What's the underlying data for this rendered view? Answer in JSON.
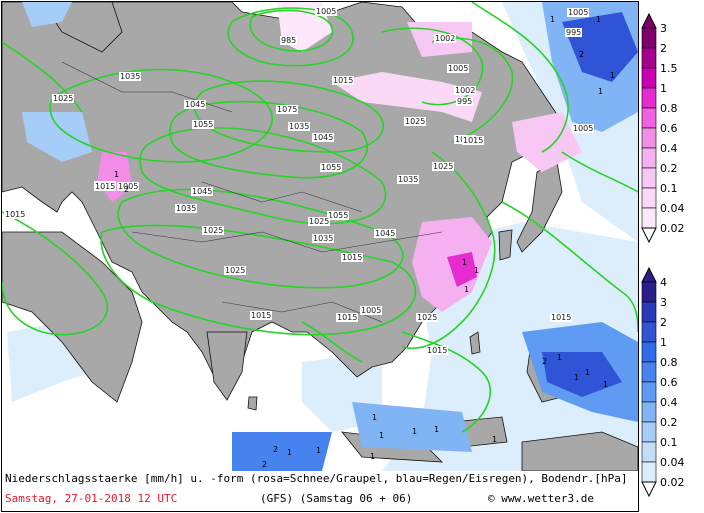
{
  "caption": {
    "title": "Niederschlagsstaerke [mm/h] u. -form (rosa=Schnee/Graupel, blau=Regen/Eisregen), Bodendr.[hPa]",
    "date": "Samstag, 27-01-2018  12 UTC",
    "model": "(GFS)  (Samstag 06 + 06)",
    "credit": "www.wetter3.de",
    "credit_symbol": "©"
  },
  "colors": {
    "land": "#a8a8a8",
    "sea": "#ffffff",
    "isobar": "#27d327",
    "coast": "#111111",
    "caption_date": "#e8182c"
  },
  "legend_snow": {
    "labels": [
      "3",
      "2",
      "1.5",
      "1",
      "0.8",
      "0.6",
      "0.4",
      "0.2",
      "0.1",
      "0.04",
      "0.02"
    ],
    "colors": [
      "#7d006b",
      "#a6008d",
      "#cc00b0",
      "#e62bd0",
      "#f060e0",
      "#f28de8",
      "#f5b0ef",
      "#f8c8f4",
      "#fad9f7",
      "#fce8fa",
      "#ffffff"
    ]
  },
  "legend_rain": {
    "labels": [
      "4",
      "3",
      "2",
      "1",
      "0.8",
      "0.6",
      "0.4",
      "0.2",
      "0.1",
      "0.04",
      "0.02"
    ],
    "colors": [
      "#2a1f8a",
      "#2b3ab8",
      "#2f55d6",
      "#2f6be8",
      "#4683ef",
      "#5f9bf2",
      "#80b4f5",
      "#a6ccf8",
      "#c4def9",
      "#dceefc",
      "#ffffff"
    ]
  },
  "isobars": [
    "1005",
    "1005",
    "1002",
    "995",
    "985",
    "1005",
    "1002",
    "995",
    "1005",
    "1015",
    "1025",
    "1035",
    "1045",
    "1055",
    "1075",
    "1035",
    "1045",
    "1025",
    "1015",
    "1005",
    "1025",
    "1035",
    "1055",
    "1045",
    "1055",
    "1035",
    "1025",
    "1015",
    "1025",
    "1045",
    "1015",
    "1035",
    "1015",
    "1015",
    "1025",
    "1005",
    "1015",
    "1015",
    "1025",
    "1015",
    "1015",
    "1015"
  ],
  "precip_values": [
    "1",
    "1",
    "2",
    "1",
    "1",
    "2",
    "1",
    "1",
    "1",
    "1",
    "2",
    "1",
    "1",
    "1",
    "1",
    "1",
    "1",
    "2",
    "1",
    "1",
    "1",
    "1",
    "2",
    "1",
    "1"
  ]
}
